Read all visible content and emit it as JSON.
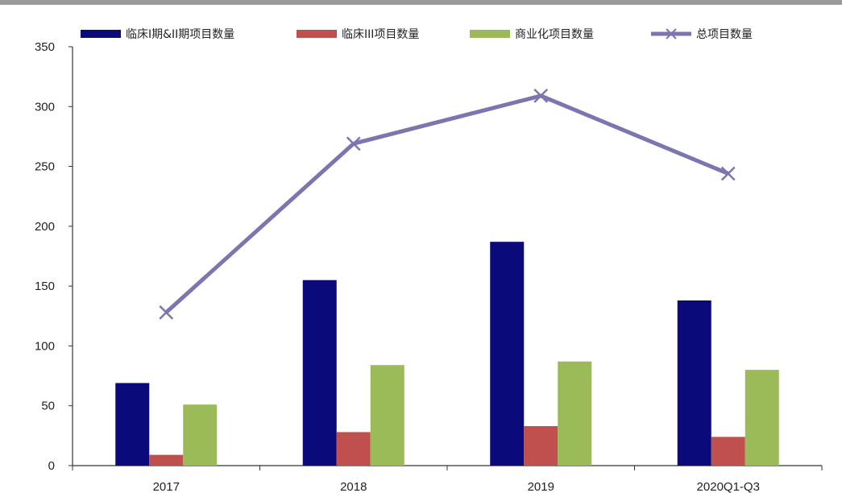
{
  "chart_data": {
    "type": "bar",
    "categories": [
      "2017",
      "2018",
      "2019",
      "2020Q1-Q3"
    ],
    "series": [
      {
        "name": "临床I期&II期项目数量",
        "type": "bar",
        "color": "#0a0a7a",
        "values": [
          69,
          155,
          187,
          138
        ]
      },
      {
        "name": "临床III项目数量",
        "type": "bar",
        "color": "#c0504d",
        "values": [
          9,
          28,
          33,
          24
        ]
      },
      {
        "name": "商业化项目数量",
        "type": "bar",
        "color": "#9bbb59",
        "values": [
          51,
          84,
          87,
          80
        ]
      },
      {
        "name": "总项目数量",
        "type": "line",
        "color": "#7b76b0",
        "marker": "x",
        "values": [
          128,
          269,
          309,
          244
        ]
      }
    ],
    "title": "",
    "xlabel": "",
    "ylabel": "",
    "ylim": [
      0,
      350
    ],
    "yticks": [
      "0",
      "50",
      "100",
      "150",
      "200",
      "250",
      "300",
      "350"
    ],
    "grid": false,
    "legend": "top"
  }
}
